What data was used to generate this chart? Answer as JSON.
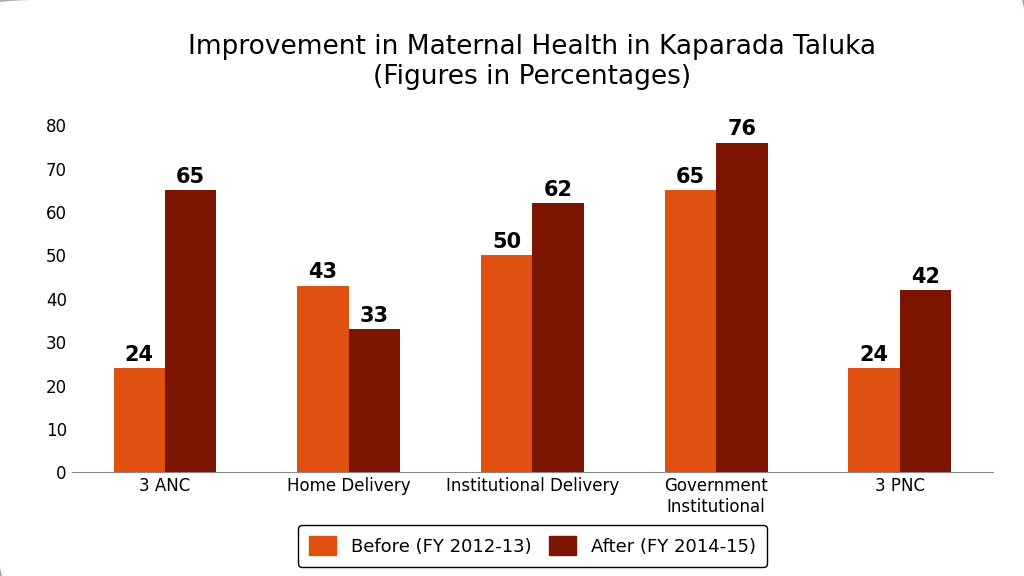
{
  "title_line1": "Improvement in Maternal Health in Kaparada Taluka",
  "title_line2": "(Figures in Percentages)",
  "categories": [
    "3 ANC",
    "Home Delivery",
    "Institutional Delivery",
    "Government\nInstitutional",
    "3 PNC"
  ],
  "before_values": [
    24,
    43,
    50,
    65,
    24
  ],
  "after_values": [
    65,
    33,
    62,
    76,
    42
  ],
  "before_color": "#E05010",
  "after_color": "#7B1500",
  "before_label": "Before (FY 2012-13)",
  "after_label": "After (FY 2014-15)",
  "ylim": [
    0,
    85
  ],
  "yticks": [
    0,
    10,
    20,
    30,
    40,
    50,
    60,
    70,
    80
  ],
  "bar_width": 0.28,
  "title_fontsize": 19,
  "tick_fontsize": 12,
  "value_fontsize": 15,
  "legend_fontsize": 13,
  "background_color": "#FFFFFF",
  "border_color": "#CCCCCC"
}
